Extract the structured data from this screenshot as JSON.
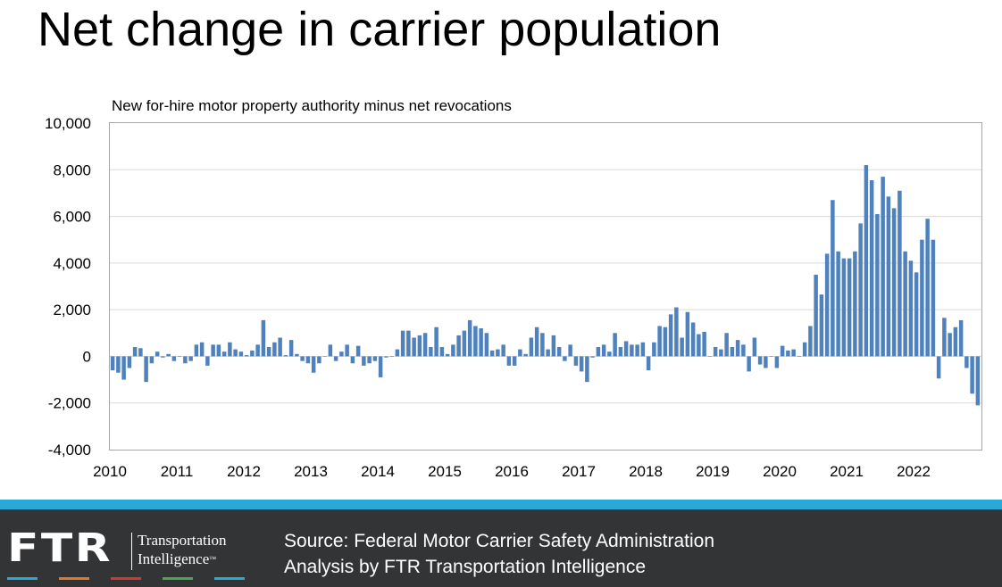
{
  "slide": {
    "title": "Net change in carrier population"
  },
  "footer": {
    "logo_mark": "FTR",
    "logo_line1": "Transportation",
    "logo_line2": "Intelligence",
    "logo_tm": "™",
    "source_line1": "Source: Federal Motor Carrier Safety Administration",
    "source_line2": "Analysis by FTR Transportation Intelligence",
    "stripe_colors": [
      "#2aa8d8",
      "#e87722",
      "#d9362b",
      "#4aa84a",
      "#2aa8d8"
    ],
    "bar_color": "#2aa8d8",
    "background_color": "#333436"
  },
  "chart_data": {
    "type": "bar",
    "title": "New for-hire motor property authority minus net revocations",
    "xlabel": "",
    "ylabel": "",
    "ylim": [
      -4000,
      10000
    ],
    "yticks": [
      "10,000",
      "8,000",
      "6,000",
      "4,000",
      "2,000",
      "0",
      "-2,000",
      "-4,000"
    ],
    "xticks": [
      "2010",
      "2011",
      "2012",
      "2013",
      "2014",
      "2015",
      "2016",
      "2017",
      "2018",
      "2019",
      "2020",
      "2021",
      "2022"
    ],
    "grid": true,
    "bar_color": "#4f81bd",
    "frequency": "monthly",
    "start": "2010-01",
    "end": "2022-12",
    "values": [
      -600,
      -700,
      -1000,
      -500,
      400,
      350,
      -1100,
      -300,
      200,
      -50,
      100,
      -200,
      0,
      -300,
      -200,
      500,
      600,
      -400,
      500,
      500,
      200,
      600,
      300,
      200,
      50,
      250,
      500,
      1550,
      400,
      600,
      800,
      50,
      700,
      100,
      -200,
      -300,
      -700,
      -300,
      0,
      500,
      -200,
      200,
      500,
      -300,
      450,
      -400,
      -300,
      -200,
      -900,
      -50,
      0,
      300,
      1100,
      1100,
      800,
      900,
      1000,
      400,
      1250,
      400,
      100,
      500,
      900,
      1100,
      1550,
      1300,
      1200,
      1000,
      250,
      300,
      500,
      -400,
      -400,
      300,
      100,
      800,
      1250,
      1000,
      300,
      900,
      400,
      -200,
      500,
      -400,
      -650,
      -1100,
      -50,
      400,
      500,
      200,
      1000,
      400,
      650,
      500,
      500,
      600,
      -600,
      600,
      1300,
      1250,
      1800,
      2100,
      800,
      1900,
      1450,
      950,
      1050,
      0,
      400,
      300,
      1000,
      400,
      700,
      500,
      -650,
      800,
      -350,
      -500,
      0,
      -500,
      450,
      250,
      300,
      0,
      600,
      1300,
      3500,
      2650,
      4400,
      6700,
      4500,
      4200,
      4200,
      4500,
      5700,
      8200,
      7550,
      6100,
      7700,
      6850,
      6350,
      7100,
      4500,
      4100,
      3600,
      5000,
      5900,
      5000,
      -950,
      1650,
      1000,
      1250,
      1550,
      -500,
      -1600,
      -2100
    ]
  }
}
